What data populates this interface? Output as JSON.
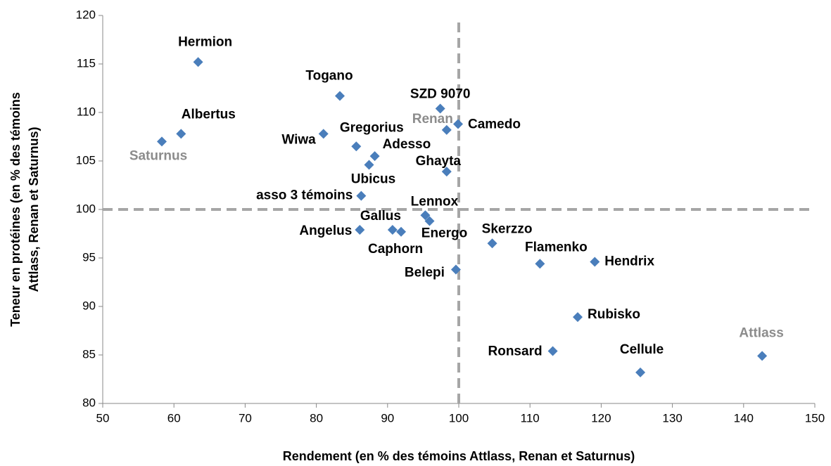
{
  "chart_data": {
    "type": "scatter",
    "xlabel": "Rendement (en % des témoins Attlass, Renan et Saturnus)",
    "ylabel": [
      "Teneur en protéines  (en % des témoins",
      "Attlass, Renan et Saturnus)"
    ],
    "labels": [
      "Hermion",
      "Togano",
      "SZD 9070",
      "Renan",
      "Camedo",
      "Albertus",
      "Saturnus",
      "Wiwa",
      "Gregorius",
      "Adesso",
      "Ubicus",
      "Ghayta",
      "asso 3 témoins",
      "Lennox",
      "Gallus",
      "Caphorn",
      "Energo",
      "Angelus",
      "Skerzzo",
      "Flamenko",
      "Hendrix",
      "Belepi",
      "Rubisko",
      "Ronsard",
      "Cellule",
      "Attlass"
    ],
    "x": [
      63.4,
      83.3,
      97.4,
      98.3,
      99.9,
      61.0,
      58.3,
      81.0,
      85.6,
      88.2,
      87.4,
      98.3,
      86.3,
      95.3,
      90.7,
      91.9,
      95.9,
      86.1,
      104.7,
      111.4,
      119.1,
      99.6,
      116.7,
      113.2,
      125.5,
      142.6
    ],
    "values": [
      115.2,
      111.7,
      110.4,
      108.2,
      108.8,
      107.8,
      107.0,
      107.8,
      106.5,
      105.5,
      104.6,
      103.9,
      101.4,
      99.4,
      97.9,
      97.7,
      98.8,
      97.9,
      96.5,
      94.4,
      94.6,
      93.8,
      88.9,
      85.4,
      83.2,
      84.9
    ],
    "color": "#4a7ebb",
    "xlim": [
      50,
      150
    ],
    "xticks": [
      50,
      60,
      70,
      80,
      90,
      100,
      110,
      120,
      130,
      140,
      150
    ],
    "ylim": [
      80,
      120
    ],
    "yticks": [
      80,
      85,
      90,
      95,
      100,
      105,
      110,
      115,
      120
    ],
    "reference_lines": {
      "x": 100,
      "y": 100
    }
  }
}
